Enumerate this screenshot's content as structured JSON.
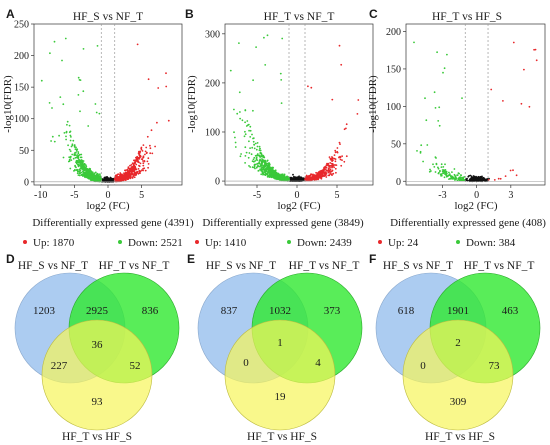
{
  "volcano_panels": [
    {
      "letter": "A",
      "title": "HF_S vs NF_T",
      "xlabel": "log2 (FC)",
      "ylabel": "-log10(FDR)",
      "x_ticks": [
        "-10",
        "-5",
        "0",
        "5"
      ],
      "y_ticks": [
        "0",
        "50",
        "100",
        "150",
        "200",
        "250"
      ],
      "deg_caption": "Differentially expressed gene (4391)",
      "legend_up": "Up: 1870",
      "legend_down": "Down: 2521"
    },
    {
      "letter": "B",
      "title": "HF_T vs NF_T",
      "xlabel": "log2 (FC)",
      "ylabel": "-log10(FDR)",
      "x_ticks": [
        "-5",
        "0",
        "5"
      ],
      "y_ticks": [
        "0",
        "100",
        "200",
        "300"
      ],
      "deg_caption": "Differentially expressed gene (3849)",
      "legend_up": "Up: 1410",
      "legend_down": "Down: 2439"
    },
    {
      "letter": "C",
      "title": "HF_T vs HF_S",
      "xlabel": "log2 (FC)",
      "ylabel": "-log10(FDR)",
      "x_ticks": [
        "-3",
        "0",
        "3"
      ],
      "y_ticks": [
        "0",
        "50",
        "100",
        "150",
        "200"
      ],
      "deg_caption": "Differentially expressed gene (408)",
      "legend_up": "Up: 24",
      "legend_down": "Down: 384"
    }
  ],
  "venn_panels": [
    {
      "letter": "D",
      "set_a": "HF_S vs NF_T",
      "set_b": "HF_T vs NF_T",
      "set_c": "HF_T vs HF_S",
      "counts": {
        "a_only": "1203",
        "ab": "2925",
        "b_only": "836",
        "abc": "36",
        "ac": "227",
        "bc": "52",
        "c_only": "93"
      }
    },
    {
      "letter": "E",
      "set_a": "HF_S vs NF_T",
      "set_b": "HF_T vs NF_T",
      "set_c": "HF_T vs HF_S",
      "counts": {
        "a_only": "837",
        "ab": "1032",
        "b_only": "373",
        "abc": "1",
        "ac": "0",
        "bc": "4",
        "c_only": "19"
      }
    },
    {
      "letter": "F",
      "set_a": "HF_S vs NF_T",
      "set_b": "HF_T vs NF_T",
      "set_c": "HF_T vs HF_S",
      "counts": {
        "a_only": "618",
        "ab": "1901",
        "b_only": "463",
        "abc": "2",
        "ac": "0",
        "bc": "73",
        "c_only": "309"
      }
    }
  ],
  "chart_data": [
    {
      "type": "scatter",
      "title": "HF_S vs NF_T",
      "xlabel": "log2 (FC)",
      "ylabel": "-log10(FDR)",
      "xlim": [
        -11,
        11
      ],
      "ylim": [
        -5,
        250
      ],
      "x_ticks": [
        -10,
        -5,
        0,
        5
      ],
      "y_ticks": [
        0,
        50,
        100,
        150,
        200,
        250
      ],
      "thresholds_log2fc": [
        -1,
        1
      ],
      "series": [
        {
          "name": "Up",
          "count": 1870,
          "color": "#e8282b"
        },
        {
          "name": "Down",
          "count": 2521,
          "color": "#3ac93a"
        }
      ],
      "total_deg": 4391
    },
    {
      "type": "scatter",
      "title": "HF_T vs NF_T",
      "xlabel": "log2 (FC)",
      "ylabel": "-log10(FDR)",
      "xlim": [
        -9,
        9.5
      ],
      "ylim": [
        -8,
        320
      ],
      "x_ticks": [
        -5,
        0,
        5
      ],
      "y_ticks": [
        0,
        100,
        200,
        300
      ],
      "thresholds_log2fc": [
        -1,
        1
      ],
      "series": [
        {
          "name": "Up",
          "count": 1410,
          "color": "#e8282b"
        },
        {
          "name": "Down",
          "count": 2439,
          "color": "#3ac93a"
        }
      ],
      "total_deg": 3849
    },
    {
      "type": "scatter",
      "title": "HF_T vs HF_S",
      "xlabel": "log2 (FC)",
      "ylabel": "-log10(FDR)",
      "xlim": [
        -6.2,
        6
      ],
      "ylim": [
        -5,
        210
      ],
      "x_ticks": [
        -3,
        0,
        3
      ],
      "y_ticks": [
        0,
        50,
        100,
        150,
        200
      ],
      "thresholds_log2fc": [
        -1,
        1
      ],
      "series": [
        {
          "name": "Up",
          "count": 24,
          "color": "#e8282b"
        },
        {
          "name": "Down",
          "count": 384,
          "color": "#3ac93a"
        }
      ],
      "total_deg": 408
    }
  ],
  "colors": {
    "up": "#e8282b",
    "down": "#3ac93a",
    "not_sig": "#111111",
    "venn_a": "#9ec3ef",
    "venn_b": "#2fe82f",
    "venn_c": "#f7f55a",
    "axis": "#333333",
    "guide": "#999999"
  }
}
